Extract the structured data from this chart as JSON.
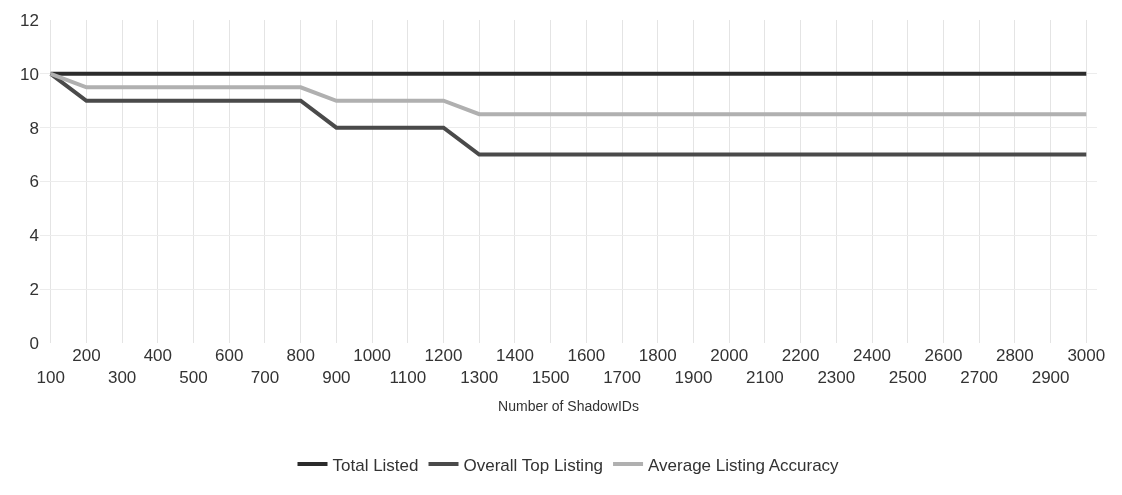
{
  "chart_data": {
    "type": "line",
    "xlabel": "Number of ShadowIDs",
    "categories": [
      "100",
      "200",
      "300",
      "400",
      "500",
      "600",
      "700",
      "800",
      "900",
      "1000",
      "1100",
      "1200",
      "1300",
      "1400",
      "1500",
      "1600",
      "1700",
      "1800",
      "1900",
      "2000",
      "2100",
      "2200",
      "2300",
      "2400",
      "2500",
      "2600",
      "2700",
      "2800",
      "2900",
      "3000"
    ],
    "series": [
      {
        "name": "Total Listed",
        "color": "#2b2b2b",
        "values": [
          10,
          10,
          10,
          10,
          10,
          10,
          10,
          10,
          10,
          10,
          10,
          10,
          10,
          10,
          10,
          10,
          10,
          10,
          10,
          10,
          10,
          10,
          10,
          10,
          10,
          10,
          10,
          10,
          10,
          10
        ]
      },
      {
        "name": "Overall Top Listing",
        "color": "#4a4a4a",
        "values": [
          10,
          9,
          9,
          9,
          9,
          9,
          9,
          9,
          8,
          8,
          8,
          8,
          7,
          7,
          7,
          7,
          7,
          7,
          7,
          7,
          7,
          7,
          7,
          7,
          7,
          7,
          7,
          7,
          7,
          7
        ]
      },
      {
        "name": "Average Listing Accuracy",
        "color": "#b0b0b0",
        "values": [
          10,
          9.5,
          9.5,
          9.5,
          9.5,
          9.5,
          9.5,
          9.5,
          9,
          9,
          9,
          9,
          8.5,
          8.5,
          8.5,
          8.5,
          8.5,
          8.5,
          8.5,
          8.5,
          8.5,
          8.5,
          8.5,
          8.5,
          8.5,
          8.5,
          8.5,
          8.5,
          8.5,
          8.5
        ]
      }
    ],
    "ylim": [
      0,
      12
    ],
    "yticks": [
      0,
      2,
      4,
      6,
      8,
      10,
      12
    ],
    "grid": true,
    "legend": "bottom",
    "line_style": "solid"
  }
}
